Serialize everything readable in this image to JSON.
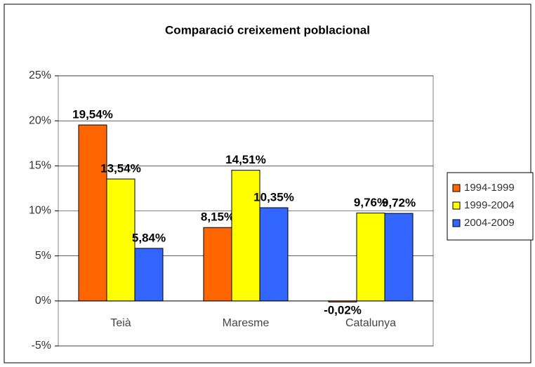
{
  "chart_data": {
    "type": "bar",
    "title": "Comparació creixement poblacional",
    "categories": [
      "Teià",
      "Maresme",
      "Catalunya"
    ],
    "series": [
      {
        "name": "1994-1999",
        "color": "#ff6600",
        "values": [
          19.54,
          8.15,
          -0.02
        ],
        "value_labels": [
          "19,54%",
          "8,15%",
          "-0,02%"
        ]
      },
      {
        "name": "1999-2004",
        "color": "#ffff00",
        "values": [
          13.54,
          14.51,
          9.76
        ],
        "value_labels": [
          "13,54%",
          "14,51%",
          "9,76%"
        ]
      },
      {
        "name": "2004-2009",
        "color": "#3366ff",
        "values": [
          5.84,
          10.35,
          9.72
        ],
        "value_labels": [
          "5,84%",
          "10,35%",
          "9,72%"
        ]
      }
    ],
    "ylim": [
      -5,
      25
    ],
    "yticks": [
      {
        "value": -5,
        "label": "-5%"
      },
      {
        "value": 0,
        "label": "0%"
      },
      {
        "value": 5,
        "label": "5%"
      },
      {
        "value": 10,
        "label": "10%"
      },
      {
        "value": 15,
        "label": "15%"
      },
      {
        "value": 20,
        "label": "20%"
      },
      {
        "value": 25,
        "label": "25%"
      }
    ],
    "grid": true,
    "legend": "right"
  }
}
